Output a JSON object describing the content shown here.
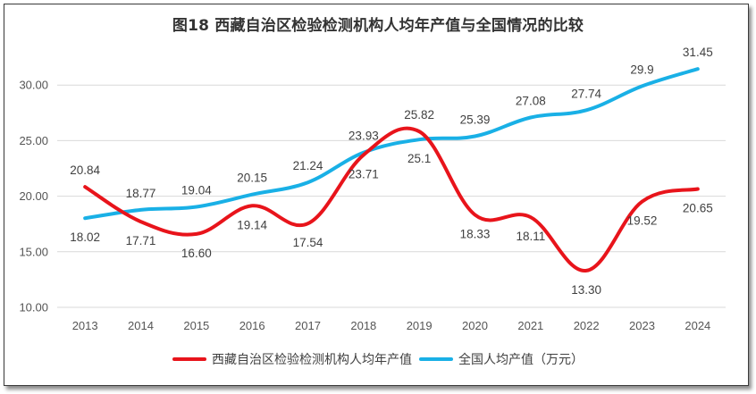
{
  "chart_data": {
    "type": "line",
    "title": "图18  西藏自治区检验检测机构人均年产值与全国情况的比较",
    "categories": [
      "2013",
      "2014",
      "2015",
      "2016",
      "2017",
      "2018",
      "2019",
      "2020",
      "2021",
      "2022",
      "2023",
      "2024"
    ],
    "ylim": [
      10,
      32.5
    ],
    "yticks": [
      "10.00",
      "15.00",
      "20.00",
      "25.00",
      "30.00"
    ],
    "ytick_values": [
      10,
      15,
      20,
      25,
      30
    ],
    "grid": true,
    "legend_position": "bottom",
    "series": [
      {
        "name": "西藏自治区检验检测机构人均年产值",
        "color": "#e8141b",
        "values": [
          20.84,
          17.71,
          16.6,
          19.14,
          17.54,
          23.71,
          25.82,
          18.33,
          18.11,
          13.3,
          19.52,
          20.65
        ],
        "labels": [
          "20.84",
          "17.71",
          "16.60",
          "19.14",
          "17.54",
          "23.71",
          "25.82",
          "18.33",
          "18.11",
          "13.30",
          "19.52",
          "20.65"
        ]
      },
      {
        "name": "全国人均产值（万元）",
        "color": "#19b0e6",
        "values": [
          18.02,
          18.77,
          19.04,
          20.15,
          21.24,
          23.93,
          25.1,
          25.39,
          27.08,
          27.74,
          29.9,
          31.45
        ],
        "labels": [
          "18.02",
          "18.77",
          "19.04",
          "20.15",
          "21.24",
          "23.93",
          "25.1",
          "25.39",
          "27.08",
          "27.74",
          "29.9",
          "31.45"
        ]
      }
    ]
  }
}
